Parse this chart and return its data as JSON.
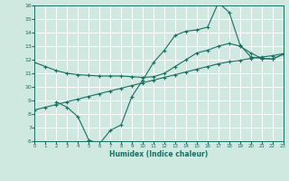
{
  "xlabel": "Humidex (Indice chaleur)",
  "xlim": [
    0,
    23
  ],
  "ylim": [
    6,
    16
  ],
  "xticks": [
    0,
    1,
    2,
    3,
    4,
    5,
    6,
    7,
    8,
    9,
    10,
    11,
    12,
    13,
    14,
    15,
    16,
    17,
    18,
    19,
    20,
    21,
    22,
    23
  ],
  "yticks": [
    6,
    7,
    8,
    9,
    10,
    11,
    12,
    13,
    14,
    15,
    16
  ],
  "background_color": "#cfe8e0",
  "line_color": "#1a6e62",
  "grid_color": "#ffffff",
  "line1_x": [
    0,
    1,
    2,
    3,
    4,
    5,
    6,
    7,
    8,
    9,
    10,
    11,
    12,
    13,
    14,
    15,
    16,
    17,
    18,
    19,
    20,
    21,
    22,
    23
  ],
  "line1_y": [
    11.8,
    11.5,
    11.2,
    11.0,
    10.9,
    10.85,
    10.8,
    10.8,
    10.8,
    10.75,
    10.7,
    10.75,
    11.0,
    11.5,
    12.0,
    12.5,
    12.7,
    13.0,
    13.2,
    13.0,
    12.5,
    12.1,
    12.05,
    12.4
  ],
  "line2_x": [
    2,
    3,
    4,
    5,
    6,
    7,
    8,
    9,
    10,
    11,
    12,
    13,
    14,
    15,
    16,
    17,
    18,
    19,
    20,
    21,
    22,
    23
  ],
  "line2_y": [
    8.9,
    8.5,
    7.8,
    6.1,
    5.8,
    6.8,
    7.2,
    9.3,
    10.5,
    11.8,
    12.7,
    13.8,
    14.1,
    14.2,
    14.4,
    16.2,
    15.5,
    13.1,
    12.2,
    12.1,
    12.05,
    12.4
  ],
  "line3_x": [
    0,
    1,
    2,
    3,
    4,
    5,
    6,
    7,
    8,
    9,
    10,
    11,
    12,
    13,
    14,
    15,
    16,
    17,
    18,
    19,
    20,
    21,
    22,
    23
  ],
  "line3_y": [
    8.3,
    8.5,
    8.7,
    8.9,
    9.1,
    9.3,
    9.5,
    9.7,
    9.9,
    10.1,
    10.3,
    10.5,
    10.7,
    10.9,
    11.1,
    11.3,
    11.5,
    11.7,
    11.85,
    11.95,
    12.1,
    12.2,
    12.3,
    12.45
  ]
}
